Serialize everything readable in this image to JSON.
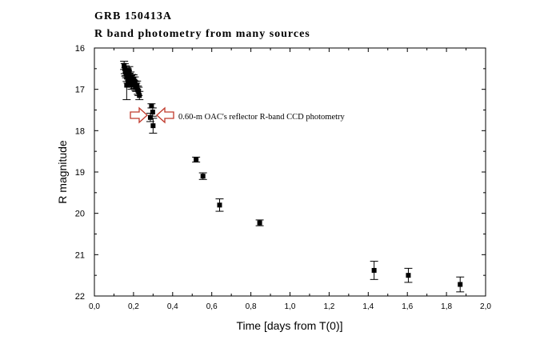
{
  "chart_data": {
    "type": "scatter",
    "title": "GRB 150413A",
    "subtitle": "R band photometry from many sources",
    "xlabel": "Time  [days from T(0)]",
    "ylabel": "R magnitude",
    "xlim": [
      0.0,
      2.0
    ],
    "ylim": [
      16,
      22
    ],
    "y_inverted": true,
    "grid": false,
    "x_ticks": [
      "0,0",
      "0,2",
      "0,4",
      "0,6",
      "0,8",
      "1,0",
      "1,2",
      "1,4",
      "1,6",
      "1,8",
      "2,0"
    ],
    "y_ticks": [
      "16",
      "17",
      "18",
      "19",
      "20",
      "21",
      "22"
    ],
    "annotation": "0.60-m OAC's reflector R-band CCD photometry",
    "marker_color": "#000000",
    "arrow_color": "#c0392b",
    "points": [
      {
        "x": 0.152,
        "y": 16.42,
        "err": 0.1
      },
      {
        "x": 0.155,
        "y": 16.5,
        "err": 0.12
      },
      {
        "x": 0.158,
        "y": 16.58,
        "err": 0.1
      },
      {
        "x": 0.16,
        "y": 16.55,
        "err": 0.12
      },
      {
        "x": 0.162,
        "y": 16.62,
        "err": 0.1
      },
      {
        "x": 0.165,
        "y": 16.7,
        "err": 0.11
      },
      {
        "x": 0.165,
        "y": 16.9,
        "err": 0.35
      },
      {
        "x": 0.168,
        "y": 16.6,
        "err": 0.12
      },
      {
        "x": 0.17,
        "y": 16.75,
        "err": 0.1
      },
      {
        "x": 0.172,
        "y": 16.65,
        "err": 0.1
      },
      {
        "x": 0.175,
        "y": 16.8,
        "err": 0.1
      },
      {
        "x": 0.178,
        "y": 16.55,
        "err": 0.1
      },
      {
        "x": 0.18,
        "y": 16.72,
        "err": 0.11
      },
      {
        "x": 0.183,
        "y": 16.85,
        "err": 0.1
      },
      {
        "x": 0.185,
        "y": 16.68,
        "err": 0.1
      },
      {
        "x": 0.188,
        "y": 16.78,
        "err": 0.11
      },
      {
        "x": 0.19,
        "y": 16.9,
        "err": 0.1
      },
      {
        "x": 0.193,
        "y": 16.74,
        "err": 0.1
      },
      {
        "x": 0.196,
        "y": 16.82,
        "err": 0.11
      },
      {
        "x": 0.2,
        "y": 16.75,
        "err": 0.1
      },
      {
        "x": 0.203,
        "y": 16.88,
        "err": 0.1
      },
      {
        "x": 0.206,
        "y": 16.8,
        "err": 0.1
      },
      {
        "x": 0.21,
        "y": 16.92,
        "err": 0.11
      },
      {
        "x": 0.214,
        "y": 16.95,
        "err": 0.1
      },
      {
        "x": 0.218,
        "y": 16.9,
        "err": 0.1
      },
      {
        "x": 0.222,
        "y": 17.02,
        "err": 0.1
      },
      {
        "x": 0.226,
        "y": 17.05,
        "err": 0.1
      },
      {
        "x": 0.23,
        "y": 17.15,
        "err": 0.1
      },
      {
        "x": 0.286,
        "y": 17.68,
        "err": 0.1
      },
      {
        "x": 0.292,
        "y": 17.4,
        "err": 0.05
      },
      {
        "x": 0.298,
        "y": 17.55,
        "err": 0.1
      },
      {
        "x": 0.3,
        "y": 17.88,
        "err": 0.18
      },
      {
        "x": 0.52,
        "y": 18.7,
        "err": 0.06
      },
      {
        "x": 0.555,
        "y": 19.1,
        "err": 0.08
      },
      {
        "x": 0.64,
        "y": 19.8,
        "err": 0.15
      },
      {
        "x": 0.845,
        "y": 20.23,
        "err": 0.07
      },
      {
        "x": 1.43,
        "y": 21.38,
        "err": 0.22
      },
      {
        "x": 1.605,
        "y": 21.5,
        "err": 0.17
      },
      {
        "x": 1.87,
        "y": 21.72,
        "err": 0.18
      }
    ]
  }
}
